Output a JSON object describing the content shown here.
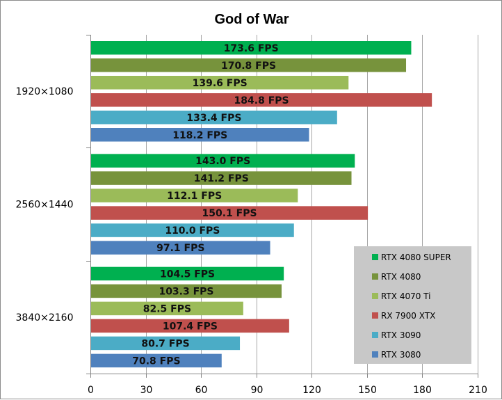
{
  "chart_data": {
    "type": "bar",
    "orientation": "horizontal",
    "title": "God of War",
    "xlabel": "",
    "ylabel": "",
    "xlim": [
      0,
      210
    ],
    "x_ticks": [
      0,
      30,
      60,
      90,
      120,
      150,
      180,
      210
    ],
    "grid": "vertical",
    "legend_position": "bottom-right",
    "label_suffix": " FPS",
    "categories": [
      "1920×1080",
      "2560×1440",
      "3840×2160"
    ],
    "series": [
      {
        "name": "RTX 4080 SUPER",
        "color": "#00b050",
        "values": [
          173.6,
          143.0,
          104.5
        ],
        "labels": [
          "173.6 FPS",
          "143.0 FPS",
          "104.5 FPS"
        ]
      },
      {
        "name": "RTX 4080",
        "color": "#77933c",
        "values": [
          170.8,
          141.2,
          103.3
        ],
        "labels": [
          "170.8 FPS",
          "141.2 FPS",
          "103.3 FPS"
        ]
      },
      {
        "name": "RTX 4070 Ti",
        "color": "#9bbb59",
        "values": [
          139.6,
          112.1,
          82.5
        ],
        "labels": [
          "139.6 FPS",
          "112.1 FPS",
          "82.5 FPS"
        ]
      },
      {
        "name": "RX 7900 XTX",
        "color": "#c0504d",
        "values": [
          184.8,
          150.1,
          107.4
        ],
        "labels": [
          "184.8 FPS",
          "150.1 FPS",
          "107.4 FPS"
        ]
      },
      {
        "name": "RTX 3090",
        "color": "#4bacc6",
        "values": [
          133.4,
          110.0,
          80.7
        ],
        "labels": [
          "133.4 FPS",
          "110.0 FPS",
          "80.7 FPS"
        ]
      },
      {
        "name": "RTX 3080",
        "color": "#4f81bd",
        "values": [
          118.2,
          97.1,
          70.8
        ],
        "labels": [
          "118.2 FPS",
          "97.1 FPS",
          "70.8 FPS"
        ]
      }
    ]
  }
}
